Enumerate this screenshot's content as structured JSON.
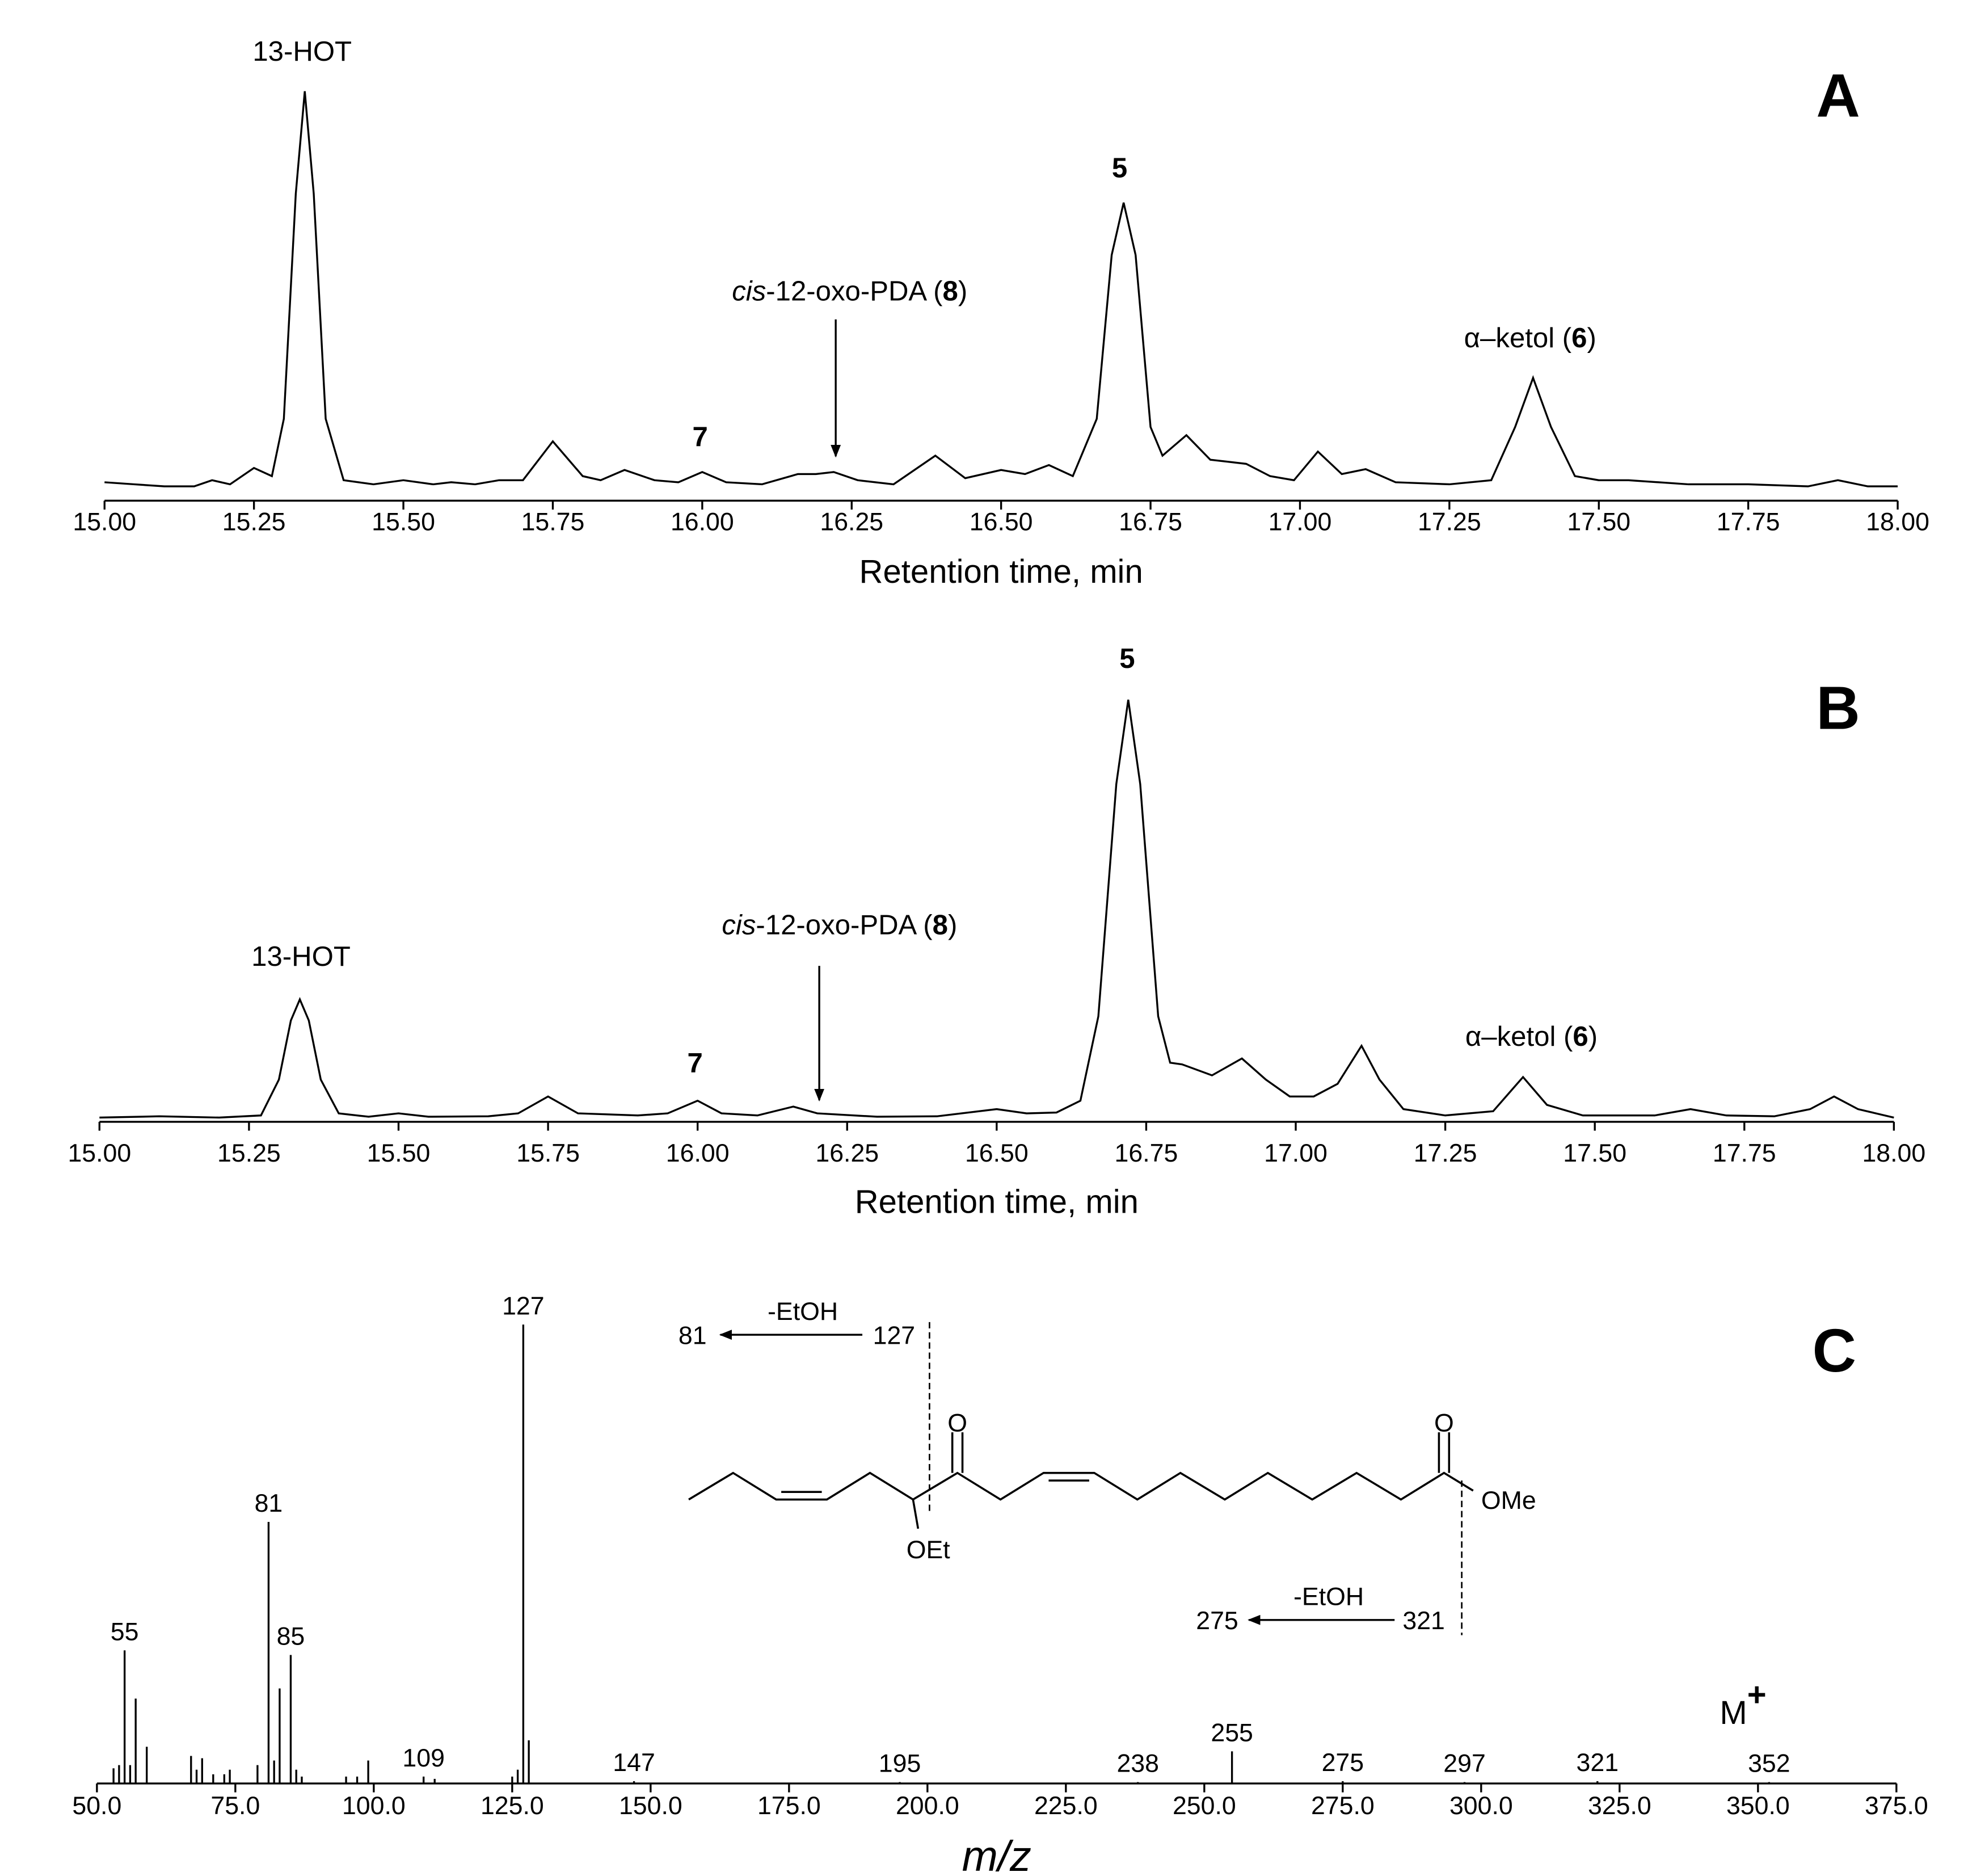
{
  "chart_data": [
    {
      "type": "line",
      "panel": "A",
      "xlabel": "Retention time, min",
      "xlim": [
        15,
        18
      ],
      "ylim": [
        0,
        100
      ],
      "color": "#000000",
      "xticks": [
        {
          "value": 15,
          "label": "15.00"
        },
        {
          "value": 15.25,
          "label": "15.25"
        },
        {
          "value": 15.5,
          "label": "15.50"
        },
        {
          "value": 15.75,
          "label": "15.75"
        },
        {
          "value": 16,
          "label": "16.00"
        },
        {
          "value": 16.25,
          "label": "16.25"
        },
        {
          "value": 16.5,
          "label": "16.50"
        },
        {
          "value": 16.75,
          "label": "16.75"
        },
        {
          "value": 17,
          "label": "17.00"
        },
        {
          "value": 17.25,
          "label": "17.25"
        },
        {
          "value": 17.5,
          "label": "17.50"
        },
        {
          "value": 17.75,
          "label": "17.75"
        },
        {
          "value": 18,
          "label": "18.00"
        }
      ],
      "annotations": [
        [
          "13-HOT"
        ],
        [
          "5"
        ],
        [
          "7"
        ],
        [
          "cis",
          "-12-oxo-PDA (",
          "8",
          ")"
        ],
        [
          "α–ketol  (",
          "6",
          ")"
        ]
      ],
      "x": [
        15.0,
        15.05,
        15.1,
        15.15,
        15.18,
        15.21,
        15.25,
        15.28,
        15.3,
        15.32,
        15.335,
        15.35,
        15.37,
        15.4,
        15.45,
        15.5,
        15.55,
        15.58,
        15.62,
        15.66,
        15.7,
        15.75,
        15.8,
        15.83,
        15.87,
        15.92,
        15.96,
        16.0,
        16.04,
        16.1,
        16.16,
        16.19,
        16.22,
        16.26,
        16.32,
        16.39,
        16.44,
        16.5,
        16.54,
        16.58,
        16.62,
        16.66,
        16.685,
        16.705,
        16.725,
        16.75,
        16.77,
        16.81,
        16.85,
        16.91,
        16.95,
        16.99,
        17.03,
        17.07,
        17.11,
        17.16,
        17.25,
        17.32,
        17.36,
        17.39,
        17.42,
        17.46,
        17.5,
        17.55,
        17.65,
        17.75,
        17.85,
        17.9,
        17.95,
        18.0
      ],
      "values": [
        4.5,
        4,
        3.5,
        3.5,
        5,
        4,
        8,
        6,
        20,
        75,
        100,
        75,
        20,
        5,
        4,
        5,
        4,
        4.5,
        4,
        5,
        5,
        14.5,
        6,
        5,
        7.5,
        5,
        4.5,
        7,
        4.5,
        4,
        6.5,
        6.5,
        7,
        5,
        4,
        11,
        5.5,
        7.5,
        6.5,
        8.7,
        6,
        20,
        60,
        72.8,
        60,
        18,
        11,
        16,
        10,
        9,
        6,
        5,
        12,
        6.5,
        7.7,
        4.5,
        4,
        5,
        18,
        30,
        18,
        6,
        5,
        5,
        4,
        4,
        3.5,
        5,
        3.5,
        3.5
      ]
    },
    {
      "type": "line",
      "panel": "B",
      "xlabel": "Retention time, min",
      "xlim": [
        15,
        18
      ],
      "ylim": [
        0,
        100
      ],
      "color": "#000000",
      "xticks": [
        {
          "value": 15,
          "label": "15.00"
        },
        {
          "value": 15.25,
          "label": "15.25"
        },
        {
          "value": 15.5,
          "label": "15.50"
        },
        {
          "value": 15.75,
          "label": "15.75"
        },
        {
          "value": 16,
          "label": "16.00"
        },
        {
          "value": 16.25,
          "label": "16.25"
        },
        {
          "value": 16.5,
          "label": "16.50"
        },
        {
          "value": 16.75,
          "label": "16.75"
        },
        {
          "value": 17,
          "label": "17.00"
        },
        {
          "value": 17.25,
          "label": "17.25"
        },
        {
          "value": 17.5,
          "label": "17.50"
        },
        {
          "value": 17.75,
          "label": "17.75"
        },
        {
          "value": 18,
          "label": "18.00"
        }
      ],
      "annotations": [
        [
          "13-HOT"
        ],
        [
          "5"
        ],
        [
          "7"
        ],
        [
          "cis",
          "-12-oxo-PDA (",
          "8",
          ")"
        ],
        [
          "α–ketol  (",
          "6",
          ")"
        ]
      ],
      "x": [
        15.0,
        15.1,
        15.2,
        15.27,
        15.3,
        15.32,
        15.335,
        15.35,
        15.37,
        15.4,
        15.45,
        15.5,
        15.55,
        15.65,
        15.7,
        15.75,
        15.8,
        15.9,
        15.95,
        16.0,
        16.04,
        16.1,
        16.16,
        16.2,
        16.3,
        16.4,
        16.5,
        16.55,
        16.6,
        16.64,
        16.67,
        16.7,
        16.72,
        16.74,
        16.77,
        16.79,
        16.81,
        16.86,
        16.91,
        16.95,
        16.99,
        17.03,
        17.07,
        17.11,
        17.14,
        17.18,
        17.25,
        17.33,
        17.38,
        17.42,
        17.48,
        17.55,
        17.6,
        17.66,
        17.72,
        17.8,
        17.86,
        17.9,
        17.94,
        18.0
      ],
      "values": [
        1,
        1.3,
        1,
        1.5,
        10,
        24,
        29,
        24,
        10,
        2,
        1.2,
        2,
        1.2,
        1.3,
        2,
        6,
        2,
        1.5,
        2,
        5,
        2,
        1.5,
        3.6,
        2,
        1.2,
        1.3,
        3,
        2,
        2.2,
        5,
        25,
        80,
        100,
        80,
        25,
        14,
        13.6,
        11,
        15,
        10,
        6,
        6,
        9,
        18,
        10,
        3,
        1.5,
        2.5,
        10.6,
        4,
        1.5,
        1.5,
        1.5,
        3,
        1.5,
        1.3,
        3,
        6,
        3,
        1
      ]
    },
    {
      "type": "bar",
      "panel": "C",
      "xlabel": "m/z",
      "xlim": [
        50,
        375
      ],
      "ylim": [
        0,
        100
      ],
      "color": "#000000",
      "xticks": [
        {
          "value": 50,
          "label": "50.0"
        },
        {
          "value": 75,
          "label": "75.0"
        },
        {
          "value": 100,
          "label": "100.0"
        },
        {
          "value": 125,
          "label": "125.0"
        },
        {
          "value": 150,
          "label": "150.0"
        },
        {
          "value": 175,
          "label": "175.0"
        },
        {
          "value": 200,
          "label": "200.0"
        },
        {
          "value": 225,
          "label": "225.0"
        },
        {
          "value": 250,
          "label": "250.0"
        },
        {
          "value": 275,
          "label": "275.0"
        },
        {
          "value": 300,
          "label": "300.0"
        },
        {
          "value": 325,
          "label": "325.0"
        },
        {
          "value": 350,
          "label": "350.0"
        },
        {
          "value": 375,
          "label": "375.0"
        }
      ],
      "annotations": [
        [
          "M",
          "+"
        ]
      ],
      "x": [
        53,
        54,
        55,
        56,
        57,
        59,
        67,
        68,
        69,
        71,
        73,
        74,
        79,
        81,
        82,
        83,
        85,
        86,
        87,
        95,
        97,
        99,
        109,
        111,
        125,
        126,
        127,
        128,
        147,
        195,
        238,
        255,
        275,
        297,
        321,
        352
      ],
      "values": [
        3.3,
        4,
        29,
        4,
        18.5,
        8,
        6,
        3,
        5.5,
        2,
        2,
        3,
        4,
        57,
        5,
        20.7,
        28,
        3,
        1.5,
        1.5,
        1.5,
        5,
        1.5,
        1,
        1.5,
        3,
        100,
        9.4,
        0.5,
        0.3,
        0.3,
        7,
        0.5,
        0.3,
        0.5,
        0.3
      ],
      "peak_labels": [
        55,
        81,
        85,
        109,
        127,
        147,
        195,
        238,
        255,
        275,
        297,
        321,
        352
      ],
      "structure": {
        "atoms": [
          "O",
          "O",
          "OEt",
          "OMe"
        ],
        "fragments": [
          {
            "parent": 127,
            "product": 81,
            "loss": "-EtOH"
          },
          {
            "parent": 321,
            "product": 275,
            "loss": "-EtOH"
          }
        ]
      }
    }
  ]
}
